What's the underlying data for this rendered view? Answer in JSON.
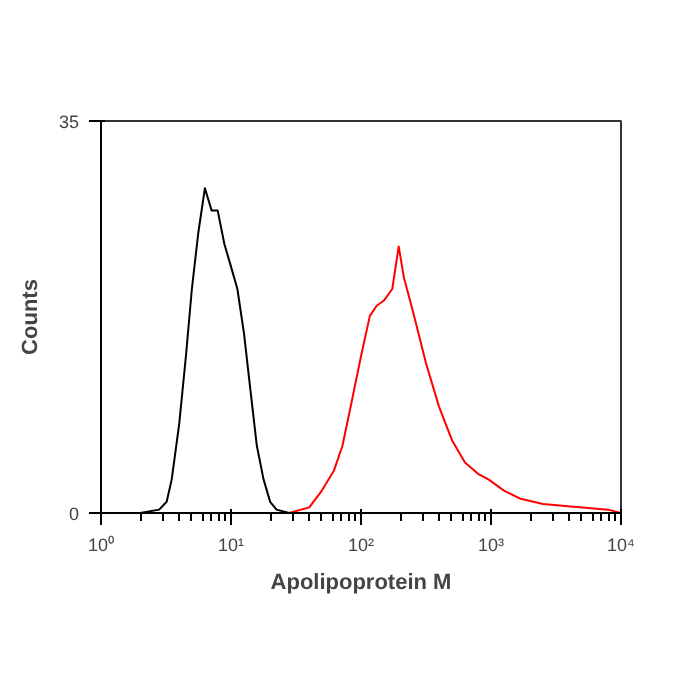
{
  "chart_data": {
    "type": "line",
    "xlabel": "Apolipoprotein M",
    "ylabel": "Counts",
    "log": "x",
    "xlim": [
      1,
      10000
    ],
    "xticks": [
      {
        "value": 1,
        "label": "10⁰"
      },
      {
        "value": 10,
        "label": "10¹"
      },
      {
        "value": 100,
        "label": "10²"
      },
      {
        "value": 1000,
        "label": "10³"
      },
      {
        "value": 10000,
        "label": "10⁴"
      }
    ],
    "ylim": [
      0,
      35
    ],
    "yticks": [
      0,
      35
    ],
    "grid": false,
    "series": [
      {
        "color": "#000000",
        "x": [
          2.0,
          2.8,
          3.2,
          3.5,
          4.0,
          4.5,
          5.0,
          5.6,
          6.3,
          7.1,
          7.9,
          8.9,
          10,
          11.2,
          12.6,
          14.1,
          15.8,
          17.8,
          20,
          22.4,
          28
        ],
        "values": [
          0,
          0.3,
          1,
          3,
          8,
          14,
          20,
          25,
          29,
          27,
          27,
          24,
          22,
          20,
          16,
          11,
          6,
          3,
          1,
          0.3,
          0
        ]
      },
      {
        "color": "#ff0000",
        "x": [
          28,
          40,
          50,
          62,
          72,
          85,
          100,
          117,
          132,
          151,
          174,
          195,
          214,
          251,
          316,
          398,
          501,
          631,
          794,
          955,
          1259,
          1660,
          2512,
          5012,
          7943,
          10000
        ],
        "values": [
          0,
          0.5,
          2,
          3.8,
          6,
          10,
          14,
          17.6,
          18.5,
          19,
          20,
          23.8,
          21,
          18,
          13.4,
          9.5,
          6.5,
          4.5,
          3.5,
          3,
          2,
          1.3,
          0.8,
          0.5,
          0.3,
          0
        ]
      }
    ]
  }
}
